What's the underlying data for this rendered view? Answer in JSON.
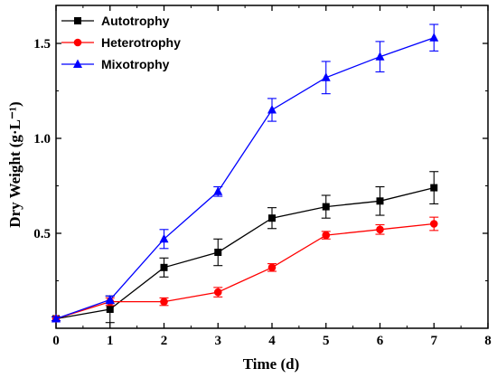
{
  "chart_data": {
    "type": "line",
    "xlabel": "Time (d)",
    "ylabel": "Dry Weight (g·L⁻¹)",
    "xlim": [
      0,
      8
    ],
    "ylim": [
      0,
      1.7
    ],
    "x_ticks": [
      "0",
      "1",
      "2",
      "3",
      "4",
      "5",
      "6",
      "7",
      "8"
    ],
    "y_ticks": [
      "0.5",
      "1.0",
      "1.5"
    ],
    "y_tick_values": [
      0.5,
      1.0,
      1.5
    ],
    "legend_position": "top-left",
    "grid": false,
    "x": [
      0,
      1,
      2,
      3,
      4,
      5,
      6,
      7
    ],
    "series": [
      {
        "name": "Autotrophy",
        "color": "#000000",
        "marker": "square",
        "values": [
          0.05,
          0.1,
          0.32,
          0.4,
          0.58,
          0.64,
          0.67,
          0.74
        ],
        "errors": [
          0.01,
          0.07,
          0.05,
          0.07,
          0.055,
          0.06,
          0.075,
          0.085
        ]
      },
      {
        "name": "Heterotrophy",
        "color": "#ff0000",
        "marker": "circle",
        "values": [
          0.05,
          0.14,
          0.14,
          0.19,
          0.32,
          0.49,
          0.52,
          0.55
        ],
        "errors": [
          0.01,
          0.02,
          0.02,
          0.025,
          0.02,
          0.02,
          0.025,
          0.035
        ]
      },
      {
        "name": "Mixotrophy",
        "color": "#0000ff",
        "marker": "triangle",
        "values": [
          0.05,
          0.15,
          0.47,
          0.72,
          1.15,
          1.32,
          1.43,
          1.53
        ],
        "errors": [
          0.01,
          0.02,
          0.05,
          0.025,
          0.06,
          0.085,
          0.08,
          0.07
        ]
      }
    ]
  }
}
